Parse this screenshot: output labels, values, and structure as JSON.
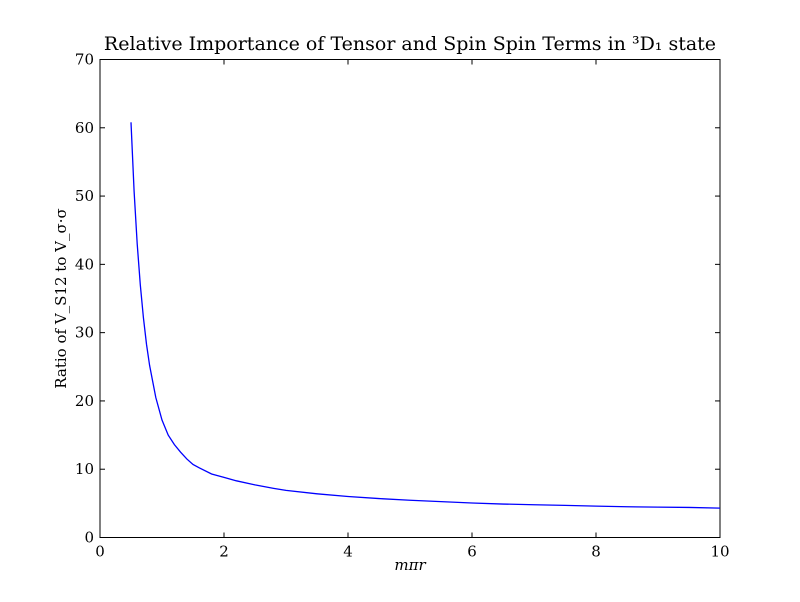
{
  "chart_data": {
    "type": "line",
    "title": "Relative Importance of Tensor and Spin Spin Terms in ³D₁ state",
    "xlabel": "mπr",
    "ylabel": "Ratio of V_S12 to V_σ·σ",
    "xlim": [
      0,
      10
    ],
    "ylim": [
      0,
      70
    ],
    "xticks": [
      0,
      2,
      4,
      6,
      8,
      10
    ],
    "yticks": [
      0,
      10,
      20,
      30,
      40,
      50,
      60,
      70
    ],
    "xtick_labels": [
      "0",
      "2",
      "4",
      "6",
      "8",
      "10"
    ],
    "ytick_labels": [
      "0",
      "10",
      "20",
      "30",
      "40",
      "50",
      "60",
      "70"
    ],
    "grid": false,
    "legend": "none",
    "series": [
      {
        "color": "#0000ff",
        "x": [
          0.5,
          0.55,
          0.6,
          0.65,
          0.7,
          0.75,
          0.8,
          0.9,
          1.0,
          1.1,
          1.2,
          1.3,
          1.4,
          1.5,
          1.6,
          1.8,
          2.0,
          2.2,
          2.5,
          2.8,
          3.0,
          3.5,
          4.0,
          4.5,
          5.0,
          5.5,
          6.0,
          6.5,
          7.0,
          7.5,
          8.0,
          8.5,
          9.0,
          9.5,
          10.0
        ],
        "y": [
          60.8,
          50.7,
          43.0,
          37.0,
          32.2,
          28.3,
          25.2,
          20.5,
          17.2,
          15.0,
          13.6,
          12.5,
          11.5,
          10.7,
          10.2,
          9.3,
          8.8,
          8.3,
          7.7,
          7.2,
          6.9,
          6.4,
          6.0,
          5.7,
          5.45,
          5.25,
          5.05,
          4.9,
          4.8,
          4.7,
          4.6,
          4.5,
          4.45,
          4.4,
          4.3
        ]
      }
    ]
  }
}
